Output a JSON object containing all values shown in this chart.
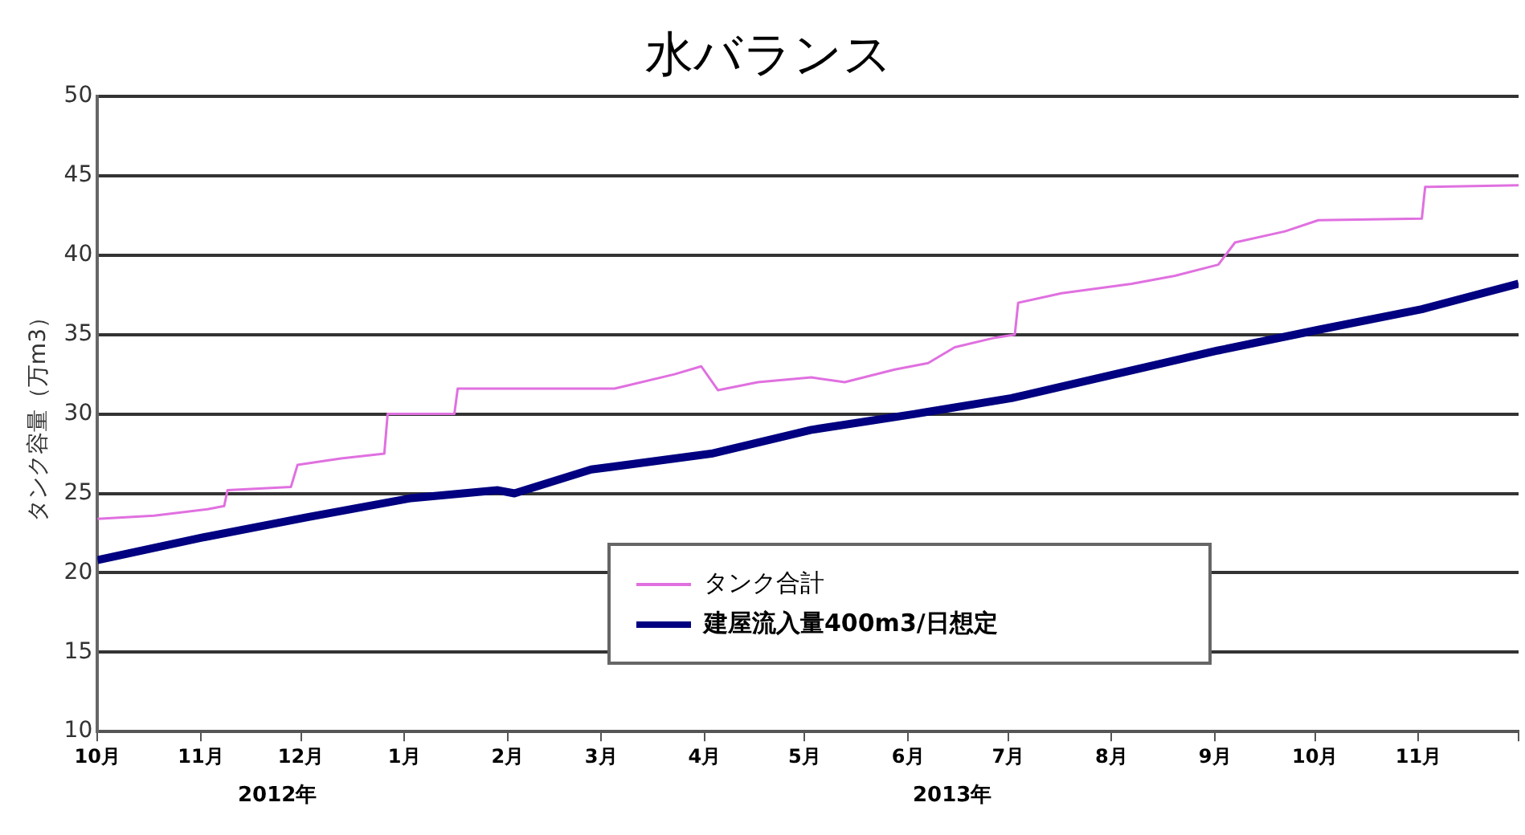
{
  "chart_data": {
    "type": "line",
    "title": "水バランス",
    "ylabel": "タンク容量（万m3）",
    "xlim": [
      "2012-10-01",
      "2013-12-01"
    ],
    "xticks": [
      {
        "value": "2012-10",
        "label": "10月"
      },
      {
        "value": "2012-11",
        "label": "11月"
      },
      {
        "value": "2012-12",
        "label": "12月"
      },
      {
        "value": "2013-01",
        "label": "1月"
      },
      {
        "value": "2013-02",
        "label": "2月"
      },
      {
        "value": "2013-03",
        "label": "3月"
      },
      {
        "value": "2013-04",
        "label": "4月"
      },
      {
        "value": "2013-05",
        "label": "5月"
      },
      {
        "value": "2013-06",
        "label": "6月"
      },
      {
        "value": "2013-07",
        "label": "7月"
      },
      {
        "value": "2013-08",
        "label": "8月"
      },
      {
        "value": "2013-09",
        "label": "9月"
      },
      {
        "value": "2013-10",
        "label": "10月"
      },
      {
        "value": "2013-11",
        "label": "11月"
      },
      {
        "value": "2013-12",
        "label": null
      }
    ],
    "ylim": [
      10,
      50
    ],
    "yticks": [
      10,
      15,
      20,
      25,
      30,
      35,
      40,
      45,
      50
    ],
    "grid": "y",
    "legend": "bottom",
    "marker": "none",
    "annotations": [
      "2012年",
      "2013年"
    ],
    "series": [
      {
        "name": "タンク合計",
        "color": "#e070e0",
        "x": [
          "2012-10-01",
          "2012-10-18",
          "2012-11-03",
          "2012-11-08",
          "2012-11-09",
          "2012-11-28",
          "2012-11-30",
          "2012-12-13",
          "2012-12-26",
          "2012-12-27",
          "2013-01-16",
          "2013-01-17",
          "2013-03-05",
          "2013-03-23",
          "2013-03-31",
          "2013-04-05",
          "2013-04-17",
          "2013-05-03",
          "2013-05-13",
          "2013-05-28",
          "2013-06-07",
          "2013-06-15",
          "2013-06-27",
          "2013-07-03",
          "2013-07-04",
          "2013-07-17",
          "2013-08-07",
          "2013-08-20",
          "2013-09-02",
          "2013-09-07",
          "2013-09-22",
          "2013-10-02",
          "2013-11-02",
          "2013-11-03",
          "2013-12-01"
        ],
        "values": [
          23.4,
          23.6,
          24,
          24.2,
          25.2,
          25.4,
          26.8,
          27.2,
          27.5,
          30,
          30,
          31.6,
          31.6,
          32.5,
          33,
          31.5,
          32,
          32.3,
          32,
          32.8,
          33.2,
          34.2,
          34.8,
          35,
          37,
          37.6,
          38.2,
          38.7,
          39.4,
          40.8,
          41.5,
          42.2,
          42.3,
          44.3,
          44.4
        ]
      },
      {
        "name": "建屋流入量400m3/日想定",
        "color": "#000080",
        "x": [
          "2012-10-01",
          "2012-11-01",
          "2012-12-03",
          "2013-01-03",
          "2013-01-29",
          "2013-02-03",
          "2013-02-26",
          "2013-04-03",
          "2013-05-03",
          "2013-06-03",
          "2013-07-02",
          "2013-08-02",
          "2013-09-02",
          "2013-10-02",
          "2013-11-02",
          "2013-12-01"
        ],
        "values": [
          20.8,
          22.2,
          23.5,
          24.7,
          25.2,
          25,
          26.5,
          27.5,
          29,
          30,
          31,
          32.5,
          34,
          35.3,
          36.6,
          38.2
        ]
      }
    ]
  }
}
